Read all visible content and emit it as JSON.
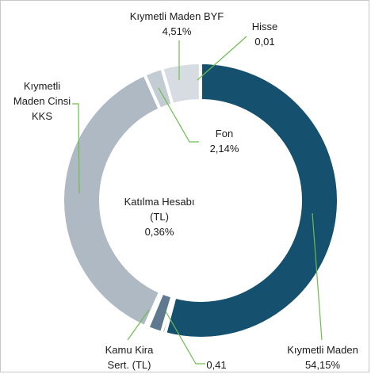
{
  "chart_data": {
    "type": "donut",
    "categories": [
      "Kıymetli Maden",
      null,
      "Kamu Kira Sert. (TL)",
      "Katılma Hesabı (TL)",
      "Kıymetli Maden Cinsi KKS",
      "Fon",
      "Kıymetli Maden BYF",
      "Hisse"
    ],
    "values": [
      54.15,
      0.41,
      1.7,
      0.36,
      36.72,
      2.14,
      4.51,
      0.01
    ],
    "value_labels": [
      "54,15%",
      "0,41",
      null,
      "0,36%",
      null,
      "2,14%",
      "4,51%",
      "0,01"
    ],
    "colors": [
      "#15506e",
      "#233f55",
      "#5f7990",
      "#f2f4f6",
      "#aeb9c3",
      "#c4ccd3",
      "#d6dce1",
      "#e3e7ea"
    ]
  }
}
